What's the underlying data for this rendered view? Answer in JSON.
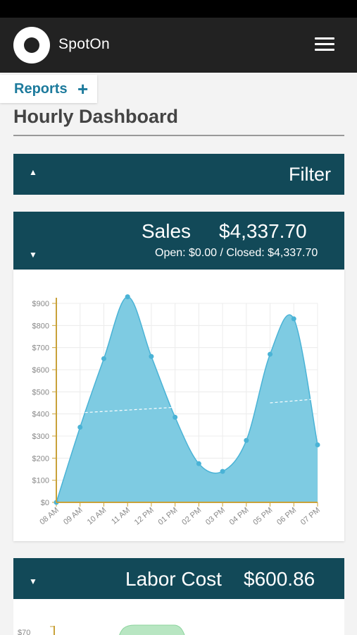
{
  "app": {
    "brand": "SpotOn",
    "menu_icon": "hamburger-menu-icon"
  },
  "nav": {
    "reports_label": "Reports",
    "reports_add_icon": "+"
  },
  "page": {
    "title": "Hourly Dashboard"
  },
  "filter": {
    "label": "Filter",
    "caret": "▲"
  },
  "sales": {
    "title": "Sales",
    "amount": "$4,337.70",
    "breakdown": "Open: $0.00 / Closed: $4,337.70",
    "caret": "▼"
  },
  "labor": {
    "title": "Labor Cost",
    "amount": "$600.86",
    "caret": "▼",
    "visible_tick": "$70"
  },
  "colors": {
    "header_bg": "#124958",
    "accent": "#1c7a9c",
    "area_fill": "#7ecbe2",
    "area_stroke": "#4ab3d6",
    "axis": "#c9a23a"
  },
  "chart_data": {
    "type": "area",
    "categories": [
      "08 AM",
      "09 AM",
      "10 AM",
      "11 AM",
      "12 PM",
      "01 PM",
      "02 PM",
      "03 PM",
      "04 PM",
      "05 PM",
      "06 PM",
      "07 PM"
    ],
    "values": [
      0,
      340,
      650,
      930,
      660,
      385,
      175,
      140,
      280,
      670,
      830,
      260
    ],
    "ylim": [
      0,
      900
    ],
    "yticks": [
      "$0",
      "$100",
      "$200",
      "$300",
      "$400",
      "$500",
      "$600",
      "$700",
      "$800",
      "$900"
    ],
    "trend_segments": [
      {
        "from": "09 AM",
        "to": "01 PM",
        "values": [
          405,
          430
        ]
      },
      {
        "from": "05 PM",
        "to": "07 PM",
        "values": [
          450,
          468
        ]
      }
    ],
    "grid": true
  }
}
